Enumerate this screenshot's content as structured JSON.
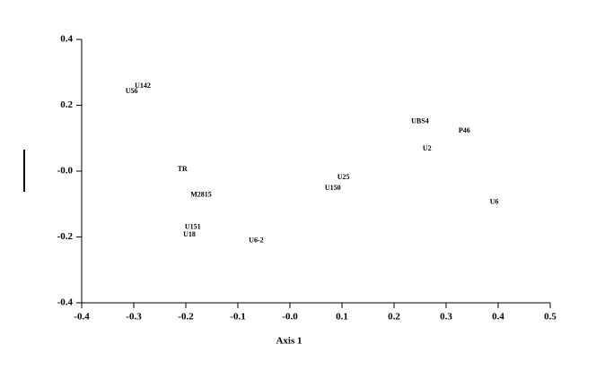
{
  "chart_data": {
    "type": "scatter",
    "x_label": "Axis 1",
    "point_labels": [
      "U142",
      "U56",
      "UBS4",
      "P46",
      "U2",
      "TR",
      "U25",
      "U150",
      "M2815",
      "U6",
      "U151",
      "U18",
      "U6-2"
    ],
    "x": [
      -0.298,
      -0.316,
      0.233,
      0.324,
      0.255,
      -0.216,
      0.091,
      0.067,
      -0.191,
      0.384,
      -0.202,
      -0.205,
      -0.079
    ],
    "values": [
      0.258,
      0.242,
      0.15,
      0.122,
      0.068,
      0.005,
      -0.019,
      -0.052,
      -0.073,
      -0.095,
      -0.171,
      -0.193,
      -0.212
    ],
    "xlim": [
      -0.4,
      0.5
    ],
    "ylim": [
      -0.4,
      0.4
    ],
    "xticks": [
      -0.4,
      -0.3,
      -0.2,
      -0.1,
      {
        "value": 0,
        "label": "-0.0"
      },
      0.1,
      0.2,
      0.3,
      0.4,
      0.5
    ],
    "yticks": [
      -0.4,
      -0.2,
      {
        "value": 0,
        "label": "-0.0"
      },
      0.2,
      0.4
    ]
  }
}
